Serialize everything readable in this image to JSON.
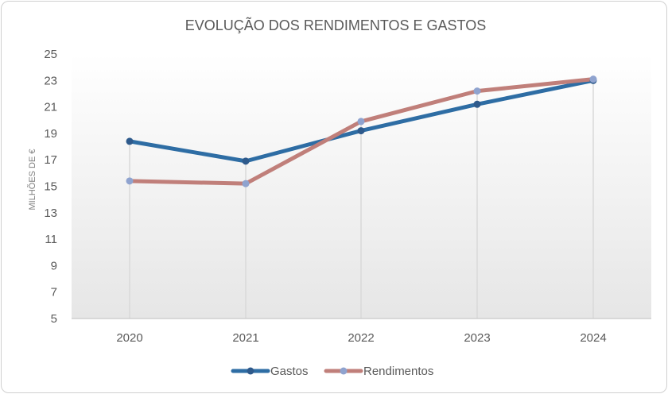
{
  "chart_data": {
    "type": "line",
    "title": "EVOLUÇÃO DOS RENDIMENTOS E GASTOS",
    "ylabel": "MILHÕES DE €",
    "xlabel": "",
    "categories": [
      "2020",
      "2021",
      "2022",
      "2023",
      "2024"
    ],
    "yticks": [
      "5",
      "7",
      "9",
      "11",
      "13",
      "15",
      "17",
      "19",
      "21",
      "23",
      "25"
    ],
    "ylim": [
      5,
      25
    ],
    "grid": "vertical drop lines at categories",
    "legend_position": "bottom",
    "series": [
      {
        "name": "Gastos",
        "values": [
          18.4,
          16.9,
          19.2,
          21.2,
          23.0
        ],
        "color": "#2e6da4",
        "marker_color": "#2e5a8c"
      },
      {
        "name": "Rendimentos",
        "values": [
          15.4,
          15.2,
          19.9,
          22.2,
          23.1
        ],
        "color": "#c07f7a",
        "marker_color": "#8fa3cf"
      }
    ]
  }
}
